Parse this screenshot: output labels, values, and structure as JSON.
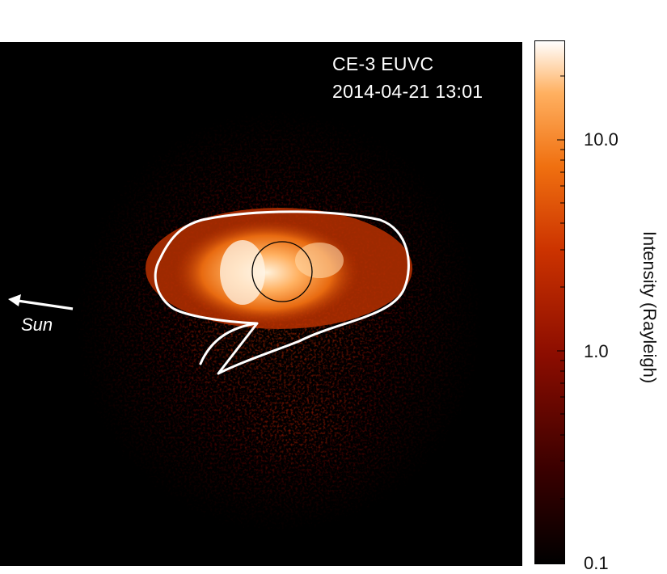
{
  "figure": {
    "instrument": "CE-3 EUVC",
    "timestamp": "2014-04-21 13:01",
    "direction_label": "Sun",
    "colors": {
      "background": "#000000",
      "contour": "#ffffff",
      "colormap": [
        "#000000",
        "#3a0000",
        "#8c0d00",
        "#cc3300",
        "#f07010",
        "#ffb060",
        "#ffffff"
      ]
    }
  },
  "colorbar": {
    "title": "Intensity (Rayleigh)",
    "scale": "log",
    "range": [
      0.1,
      30
    ],
    "tick_labels": [
      "10.0",
      "1.0",
      "0.1"
    ]
  }
}
